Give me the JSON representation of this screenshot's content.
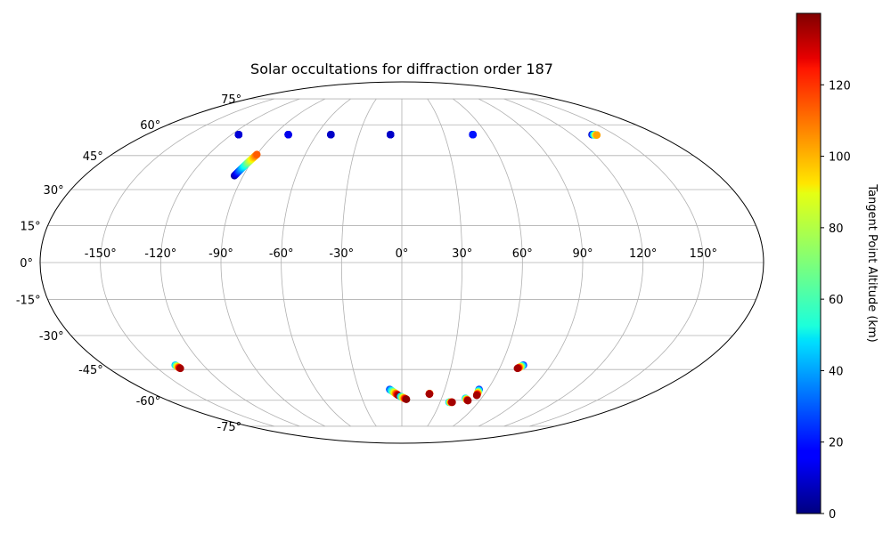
{
  "chart_data": {
    "type": "scatter",
    "projection": "mollweide",
    "title": "Solar occultations for diffraction order 187",
    "grid": true,
    "lon_ticks": [
      -150,
      -120,
      -90,
      -60,
      -30,
      0,
      30,
      60,
      90,
      120,
      150
    ],
    "lon_tick_labels": [
      "-150°",
      "-120°",
      "-90°",
      "-60°",
      "-30°",
      "0°",
      "30°",
      "60°",
      "90°",
      "120°",
      "150°"
    ],
    "lat_ticks": [
      -75,
      -60,
      -45,
      -30,
      -15,
      0,
      15,
      30,
      45,
      60,
      75
    ],
    "lat_tick_labels": [
      "-75°",
      "-60°",
      "-45°",
      "-30°",
      "-15°",
      "0°",
      "15°",
      "30°",
      "45°",
      "60°",
      "75°"
    ],
    "colorbar": {
      "label": "Tangent Point Altitude (km)",
      "colormap": "jet",
      "vmin": 0,
      "vmax": 140,
      "ticks": [
        0,
        20,
        40,
        60,
        80,
        100,
        120
      ],
      "tick_labels": [
        "0",
        "20",
        "40",
        "60",
        "80",
        "100",
        "120"
      ]
    },
    "tracks": [
      {
        "lon_start": -115,
        "lat_start": 55,
        "alt_start": 5,
        "lon_end": -115,
        "lat_end": 55,
        "alt_end": 12
      },
      {
        "lon_start": -80,
        "lat_start": 55,
        "alt_start": 5,
        "lon_end": -80,
        "lat_end": 55,
        "alt_end": 15
      },
      {
        "lon_start": -50,
        "lat_start": 55,
        "alt_start": 5,
        "lon_end": -50,
        "lat_end": 55,
        "alt_end": 10
      },
      {
        "lon_start": -8,
        "lat_start": 55,
        "alt_start": 5,
        "lon_end": -8,
        "lat_end": 55,
        "alt_end": 10
      },
      {
        "lon_start": 50,
        "lat_start": 55,
        "alt_start": 5,
        "lon_end": 50,
        "lat_end": 55,
        "alt_end": 20
      },
      {
        "lon_start": 134,
        "lat_start": 55,
        "alt_start": 5,
        "lon_end": 137,
        "lat_end": 54.8,
        "alt_end": 100
      },
      {
        "lon_start": -95,
        "lat_start": 36,
        "alt_start": 5,
        "lon_end": -90,
        "lat_end": 45.5,
        "alt_end": 110
      },
      {
        "lon_start": -137,
        "lat_start": -43,
        "alt_start": 40,
        "lon_end": -136,
        "lat_end": -44.5,
        "alt_end": 135
      },
      {
        "lon_start": -8.5,
        "lat_start": -54.5,
        "alt_start": 25,
        "lon_end": -2.5,
        "lat_end": -57.5,
        "alt_end": 135
      },
      {
        "lon_start": -1,
        "lat_start": -58,
        "alt_start": 40,
        "lon_end": 3.5,
        "lat_end": -59.5,
        "alt_end": 138
      },
      {
        "lon_start": 20,
        "lat_start": -56.5,
        "alt_start": 90,
        "lon_end": 20,
        "lat_end": -56.8,
        "alt_end": 135
      },
      {
        "lon_start": 37,
        "lat_start": -61,
        "alt_start": 40,
        "lon_end": 39.5,
        "lat_end": -61,
        "alt_end": 135
      },
      {
        "lon_start": 48,
        "lat_start": -59,
        "alt_start": 40,
        "lon_end": 51,
        "lat_end": -60.2,
        "alt_end": 135
      },
      {
        "lon_start": 54,
        "lat_start": -54.5,
        "alt_start": 20,
        "lon_end": 55,
        "lat_end": -57.5,
        "alt_end": 135
      },
      {
        "lon_start": 73.5,
        "lat_start": -43,
        "alt_start": 20,
        "lon_end": 71,
        "lat_end": -44.5,
        "alt_end": 135
      }
    ]
  }
}
